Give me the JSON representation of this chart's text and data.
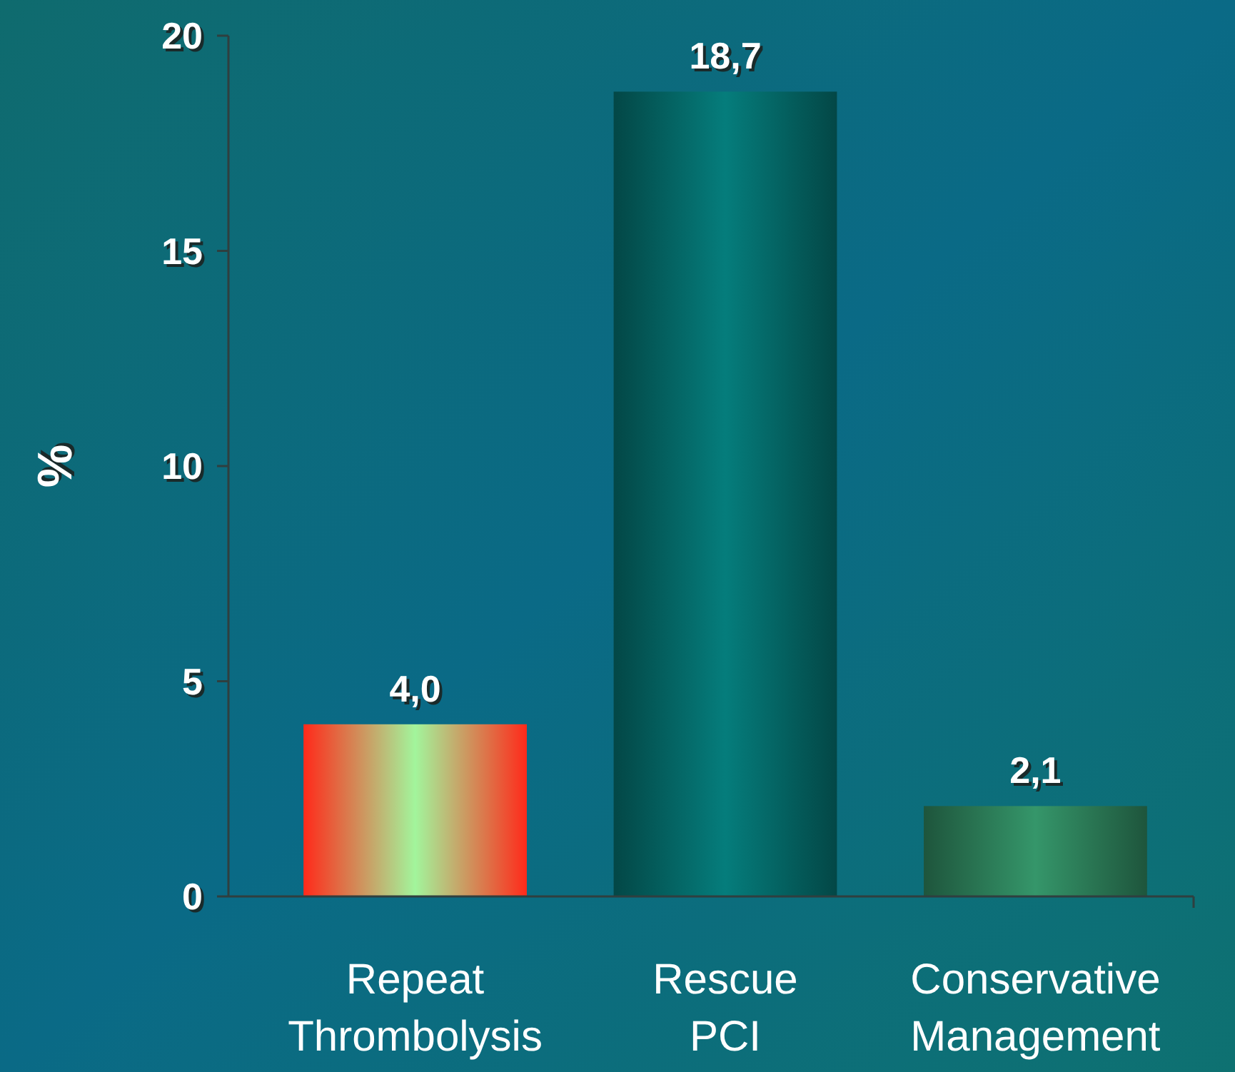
{
  "chart_data": {
    "type": "bar",
    "ylabel": "%",
    "categories": [
      "Repeat Thrombolysis",
      "Rescue PCI",
      "Conservative Management"
    ],
    "values": [
      4.0,
      18.7,
      2.1
    ],
    "colors": [
      "#a2f59c",
      "#057d7c",
      "#35966a"
    ],
    "value_labels": [
      "4,0",
      "18,7",
      "2,1"
    ],
    "ylim": [
      0,
      20
    ],
    "yticks": [
      0,
      5,
      10,
      15,
      20
    ],
    "grid": false
  }
}
